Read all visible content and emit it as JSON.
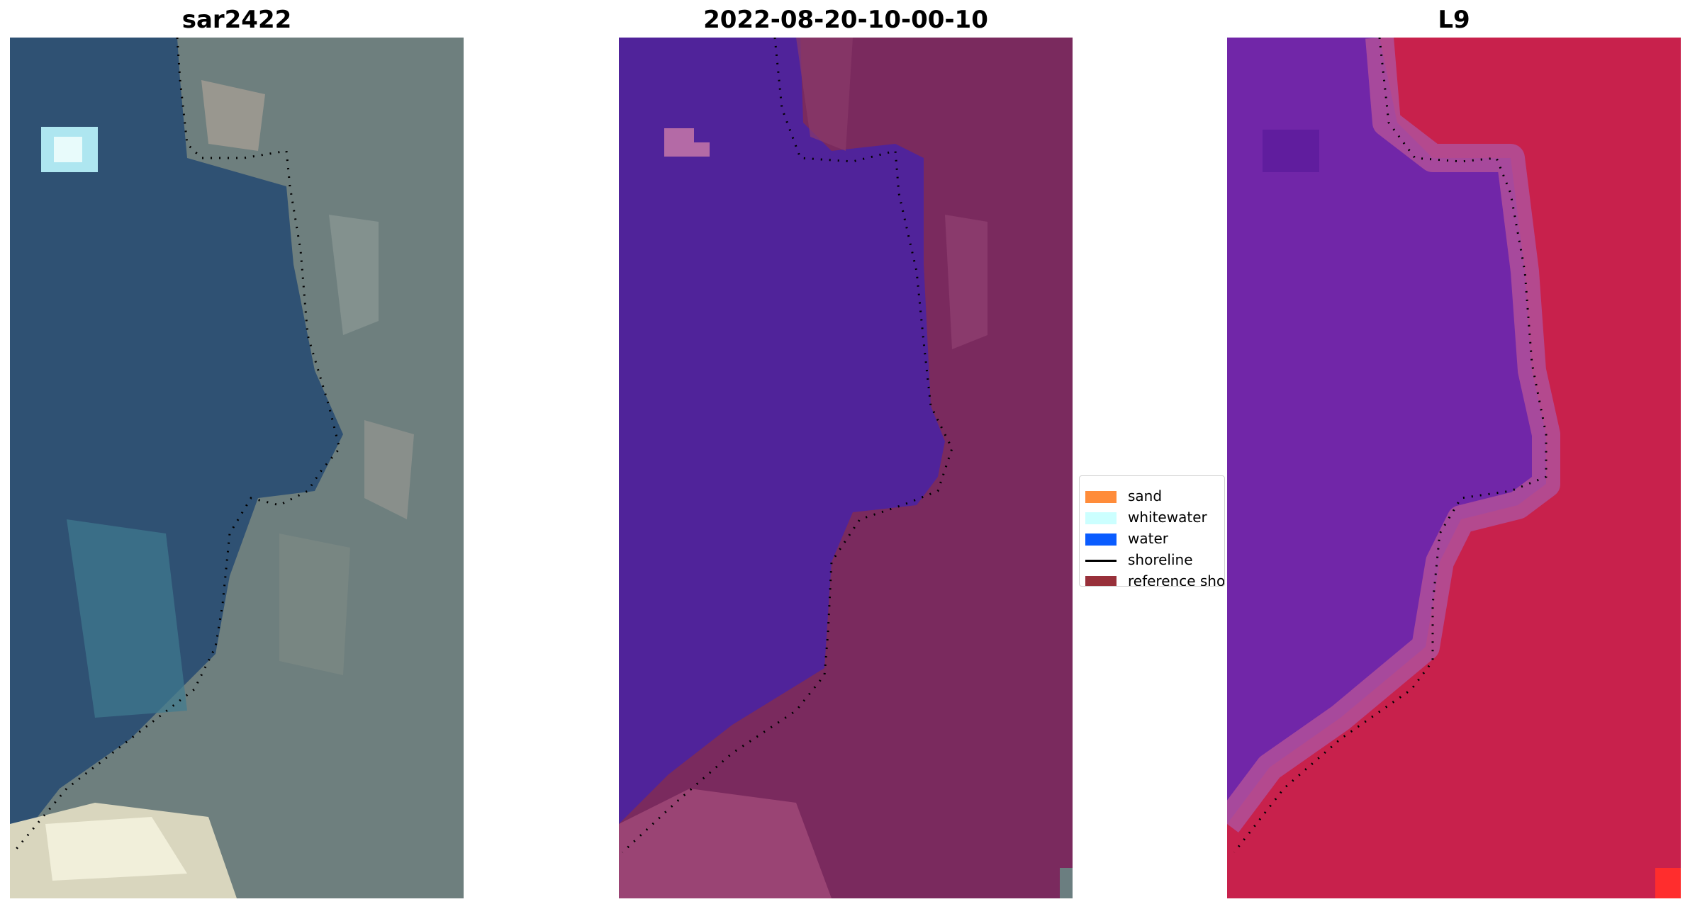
{
  "panels": [
    {
      "title": "sar2422"
    },
    {
      "title": "2022-08-20-10-00-10"
    },
    {
      "title": "L9"
    }
  ],
  "legend": {
    "items": [
      {
        "label": "sand",
        "color": "#ff8c3a",
        "kind": "patch"
      },
      {
        "label": "whitewater",
        "color": "#ccffff",
        "kind": "patch"
      },
      {
        "label": "water",
        "color": "#0a5cff",
        "kind": "patch"
      },
      {
        "label": "shoreline",
        "color": "#000000",
        "kind": "line"
      },
      {
        "label": "reference shoreline",
        "color": "#98303a",
        "kind": "patch"
      }
    ]
  },
  "colors": {
    "rgb_water": "#2f4f6d",
    "rgb_land": "#6f8080",
    "class_water": "#50239a",
    "class_land": "#7a2a5e",
    "mndwi_water": "#6e1fa6",
    "mndwi_land": "#c4204d",
    "shoreline_dots": "#000000"
  }
}
